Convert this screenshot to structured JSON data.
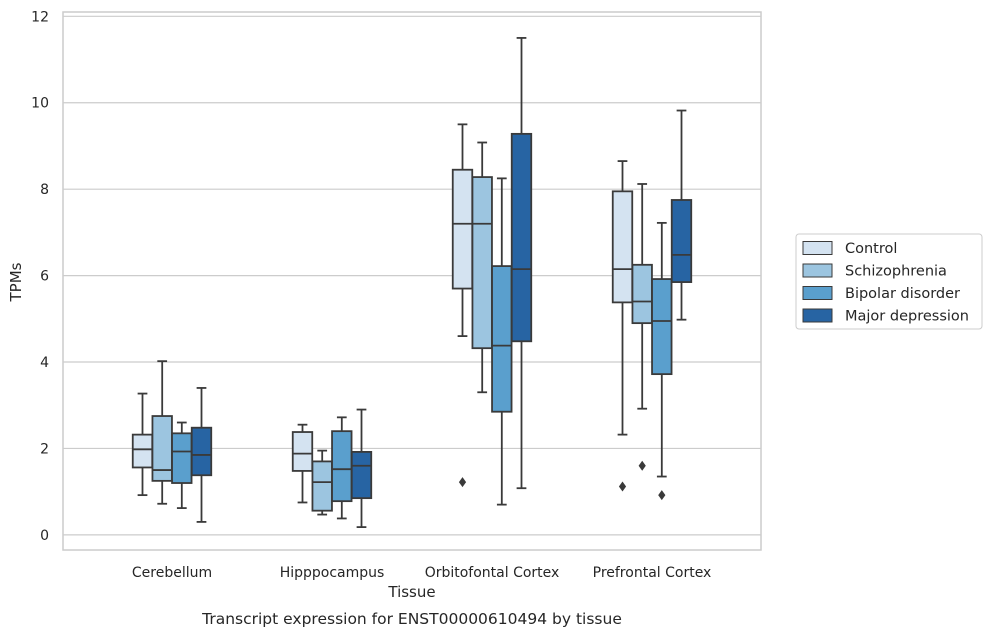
{
  "chart_data": {
    "type": "box",
    "xlabel": "Tissue",
    "ylabel": "TPMs",
    "caption": "Transcript expression for ENST00000610494 by tissue",
    "ylim": [
      -0.35,
      12.1
    ],
    "yticks": [
      0,
      2,
      4,
      6,
      8,
      10,
      12
    ],
    "grid": true,
    "legend_position": "right",
    "categories": [
      "Cerebellum",
      "Hipppocampus",
      "Orbitofontal Cortex",
      "Prefrontal Cortex"
    ],
    "series": [
      {
        "name": "Control",
        "color": "#d4e3f1",
        "boxes": [
          {
            "whisker_low": 0.92,
            "q1": 1.56,
            "median": 1.98,
            "q3": 2.32,
            "whisker_high": 3.27,
            "outliers": []
          },
          {
            "whisker_low": 0.75,
            "q1": 1.48,
            "median": 1.88,
            "q3": 2.38,
            "whisker_high": 2.55,
            "outliers": []
          },
          {
            "whisker_low": 4.6,
            "q1": 5.7,
            "median": 7.2,
            "q3": 8.45,
            "whisker_high": 9.5,
            "outliers": [
              1.22
            ]
          },
          {
            "whisker_low": 2.32,
            "q1": 5.38,
            "median": 6.15,
            "q3": 7.95,
            "whisker_high": 8.65,
            "outliers": [
              1.12
            ]
          }
        ]
      },
      {
        "name": "Schizophrenia",
        "color": "#9cc5e0",
        "boxes": [
          {
            "whisker_low": 0.72,
            "q1": 1.25,
            "median": 1.5,
            "q3": 2.75,
            "whisker_high": 4.02,
            "outliers": []
          },
          {
            "whisker_low": 0.47,
            "q1": 0.56,
            "median": 1.22,
            "q3": 1.7,
            "whisker_high": 1.95,
            "outliers": []
          },
          {
            "whisker_low": 3.3,
            "q1": 4.32,
            "median": 7.2,
            "q3": 8.28,
            "whisker_high": 9.08,
            "outliers": []
          },
          {
            "whisker_low": 2.92,
            "q1": 4.9,
            "median": 5.4,
            "q3": 6.25,
            "whisker_high": 8.12,
            "outliers": [
              1.6
            ]
          }
        ]
      },
      {
        "name": "Bipolar disorder",
        "color": "#5a9fcd",
        "boxes": [
          {
            "whisker_low": 0.62,
            "q1": 1.2,
            "median": 1.93,
            "q3": 2.35,
            "whisker_high": 2.6,
            "outliers": []
          },
          {
            "whisker_low": 0.38,
            "q1": 0.78,
            "median": 1.52,
            "q3": 2.4,
            "whisker_high": 2.72,
            "outliers": []
          },
          {
            "whisker_low": 0.7,
            "q1": 2.85,
            "median": 4.38,
            "q3": 6.22,
            "whisker_high": 8.25,
            "outliers": []
          },
          {
            "whisker_low": 1.35,
            "q1": 3.72,
            "median": 4.95,
            "q3": 5.92,
            "whisker_high": 7.22,
            "outliers": [
              0.92
            ]
          }
        ]
      },
      {
        "name": "Major depression",
        "color": "#2764a3",
        "boxes": [
          {
            "whisker_low": 0.3,
            "q1": 1.38,
            "median": 1.85,
            "q3": 2.48,
            "whisker_high": 3.4,
            "outliers": []
          },
          {
            "whisker_low": 0.18,
            "q1": 0.85,
            "median": 1.6,
            "q3": 1.92,
            "whisker_high": 2.9,
            "outliers": []
          },
          {
            "whisker_low": 1.08,
            "q1": 4.48,
            "median": 6.15,
            "q3": 9.28,
            "whisker_high": 11.5,
            "outliers": []
          },
          {
            "whisker_low": 4.98,
            "q1": 5.85,
            "median": 6.48,
            "q3": 7.75,
            "whisker_high": 9.82,
            "outliers": []
          }
        ]
      }
    ],
    "line_color": "#3a3a3a",
    "grid_color": "#cccccc"
  }
}
